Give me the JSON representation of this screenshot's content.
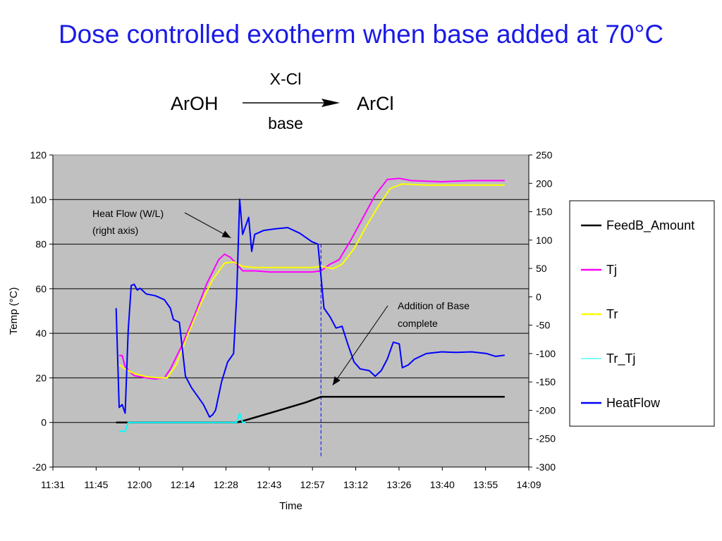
{
  "slide_title": "Dose controlled exotherm when base added at 70°C",
  "reaction": {
    "reactant": "ArOH",
    "product": "ArCl",
    "reagent_above": "X-Cl",
    "reagent_below": "base"
  },
  "chart_data": {
    "type": "line",
    "xlabel": "Time",
    "ylabel": "Temp (°C)",
    "y2label": "",
    "x_ticks": [
      "11:31",
      "11:45",
      "12:00",
      "12:14",
      "12:28",
      "12:43",
      "12:57",
      "13:12",
      "13:26",
      "13:40",
      "13:55",
      "14:09"
    ],
    "x_range": [
      "11:31",
      "14:09"
    ],
    "ylim": [
      -20,
      120
    ],
    "y_ticks": [
      -20,
      0,
      20,
      40,
      60,
      80,
      100,
      120
    ],
    "y2lim": [
      -300,
      250
    ],
    "y2_ticks": [
      -300,
      -250,
      -200,
      -150,
      -100,
      -50,
      0,
      50,
      100,
      150,
      200,
      250
    ],
    "grid": "horizontal",
    "plot_background": "#c0c0c0",
    "legend_position": "right",
    "series": [
      {
        "name": "FeedB_Amount",
        "axis": "left",
        "color": "#000000",
        "points": [
          [
            "11:52",
            0
          ],
          [
            "12:32",
            0
          ],
          [
            "12:35",
            1
          ],
          [
            "12:40",
            3
          ],
          [
            "12:45",
            5
          ],
          [
            "12:50",
            7
          ],
          [
            "12:55",
            9
          ],
          [
            "13:00",
            11.5
          ],
          [
            "13:05",
            11.5
          ],
          [
            "13:30",
            11.5
          ],
          [
            "14:01",
            11.5
          ]
        ]
      },
      {
        "name": "Tj",
        "axis": "left",
        "color": "#ff00ff",
        "points": [
          [
            "11:53",
            30
          ],
          [
            "11:54",
            30
          ],
          [
            "11:55",
            25
          ],
          [
            "11:58",
            21
          ],
          [
            "12:02",
            20
          ],
          [
            "12:05",
            19.5
          ],
          [
            "12:08",
            20
          ],
          [
            "12:10",
            24
          ],
          [
            "12:14",
            35
          ],
          [
            "12:18",
            48
          ],
          [
            "12:22",
            62
          ],
          [
            "12:26",
            73
          ],
          [
            "12:28",
            75.5
          ],
          [
            "12:30",
            74
          ],
          [
            "12:32",
            71
          ],
          [
            "12:34",
            68
          ],
          [
            "12:38",
            68
          ],
          [
            "12:43",
            67.5
          ],
          [
            "12:50",
            67.5
          ],
          [
            "12:57",
            67.5
          ],
          [
            "13:00",
            68
          ],
          [
            "13:03",
            71
          ],
          [
            "13:06",
            73
          ],
          [
            "13:10",
            82
          ],
          [
            "13:14",
            92
          ],
          [
            "13:18",
            102
          ],
          [
            "13:22",
            109
          ],
          [
            "13:26",
            109.5
          ],
          [
            "13:30",
            108.5
          ],
          [
            "13:40",
            108
          ],
          [
            "13:50",
            108.5
          ],
          [
            "14:01",
            108.5
          ]
        ]
      },
      {
        "name": "Tr",
        "axis": "left",
        "color": "#ffff00",
        "points": [
          [
            "11:53",
            26
          ],
          [
            "11:55",
            24
          ],
          [
            "11:58",
            22
          ],
          [
            "12:02",
            20.5
          ],
          [
            "12:06",
            20
          ],
          [
            "12:09",
            20
          ],
          [
            "12:12",
            26
          ],
          [
            "12:16",
            40
          ],
          [
            "12:20",
            53
          ],
          [
            "12:24",
            64
          ],
          [
            "12:28",
            71.5
          ],
          [
            "12:31",
            72
          ],
          [
            "12:34",
            70
          ],
          [
            "12:38",
            69.5
          ],
          [
            "12:43",
            69.5
          ],
          [
            "12:57",
            69.5
          ],
          [
            "13:00",
            70
          ],
          [
            "13:04",
            69
          ],
          [
            "13:07",
            71
          ],
          [
            "13:11",
            78
          ],
          [
            "13:15",
            88
          ],
          [
            "13:19",
            97
          ],
          [
            "13:23",
            105
          ],
          [
            "13:27",
            107
          ],
          [
            "13:35",
            106.5
          ],
          [
            "13:45",
            106.5
          ],
          [
            "14:01",
            106.5
          ]
        ]
      },
      {
        "name": "Tr_Tj",
        "axis": "left",
        "color": "#00ffff",
        "points": [
          [
            "11:53",
            -4
          ],
          [
            "11:55",
            -4
          ],
          [
            "11:56",
            0
          ],
          [
            "12:07",
            0
          ],
          [
            "12:32",
            0
          ],
          [
            "12:33",
            4
          ],
          [
            "12:34",
            0
          ],
          [
            "12:35",
            0
          ]
        ]
      },
      {
        "name": "HeatFlow",
        "axis": "right",
        "color": "#0000ff",
        "points": [
          [
            "11:52",
            -20
          ],
          [
            "11:53",
            -195
          ],
          [
            "11:54",
            -190
          ],
          [
            "11:55",
            -205
          ],
          [
            "11:56",
            -60
          ],
          [
            "11:57",
            20
          ],
          [
            "11:58",
            22
          ],
          [
            "11:59",
            12
          ],
          [
            "12:00",
            15
          ],
          [
            "12:02",
            5
          ],
          [
            "12:05",
            2
          ],
          [
            "12:08",
            -5
          ],
          [
            "12:10",
            -20
          ],
          [
            "12:11",
            -40
          ],
          [
            "12:13",
            -45
          ],
          [
            "12:15",
            -140
          ],
          [
            "12:17",
            -160
          ],
          [
            "12:19",
            -175
          ],
          [
            "12:21",
            -190
          ],
          [
            "12:23",
            -212
          ],
          [
            "12:24",
            -208
          ],
          [
            "12:25",
            -200
          ],
          [
            "12:27",
            -150
          ],
          [
            "12:29",
            -115
          ],
          [
            "12:31",
            -100
          ],
          [
            "12:32",
            0
          ],
          [
            "12:33",
            172
          ],
          [
            "12:34",
            110
          ],
          [
            "12:35",
            125
          ],
          [
            "12:36",
            140
          ],
          [
            "12:37",
            80
          ],
          [
            "12:38",
            110
          ],
          [
            "12:41",
            117
          ],
          [
            "12:45",
            120
          ],
          [
            "12:49",
            122
          ],
          [
            "12:53",
            112
          ],
          [
            "12:57",
            97
          ],
          [
            "12:59",
            93
          ],
          [
            "13:01",
            -20
          ],
          [
            "13:03",
            -35
          ],
          [
            "13:05",
            -55
          ],
          [
            "13:07",
            -52
          ],
          [
            "13:09",
            -85
          ],
          [
            "13:11",
            -115
          ],
          [
            "13:13",
            -127
          ],
          [
            "13:16",
            -130
          ],
          [
            "13:18",
            -140
          ],
          [
            "13:20",
            -130
          ],
          [
            "13:22",
            -110
          ],
          [
            "13:24",
            -80
          ],
          [
            "13:26",
            -83
          ],
          [
            "13:27",
            -125
          ],
          [
            "13:29",
            -120
          ],
          [
            "13:31",
            -110
          ],
          [
            "13:33",
            -105
          ],
          [
            "13:35",
            -100
          ],
          [
            "13:40",
            -97
          ],
          [
            "13:45",
            -98
          ],
          [
            "13:50",
            -97
          ],
          [
            "13:55",
            -100
          ],
          [
            "13:58",
            -105
          ],
          [
            "14:01",
            -103
          ]
        ]
      }
    ],
    "annotations": [
      {
        "text_line1": "Heat Flow (W/L)",
        "text_line2": "(right axis)",
        "arrow_to": [
          "12:31",
          104
        ]
      },
      {
        "text_line1": "Addition of Base",
        "text_line2": "complete",
        "arrow_to": [
          "13:02",
          97
        ],
        "vline_x": "13:00"
      }
    ]
  }
}
